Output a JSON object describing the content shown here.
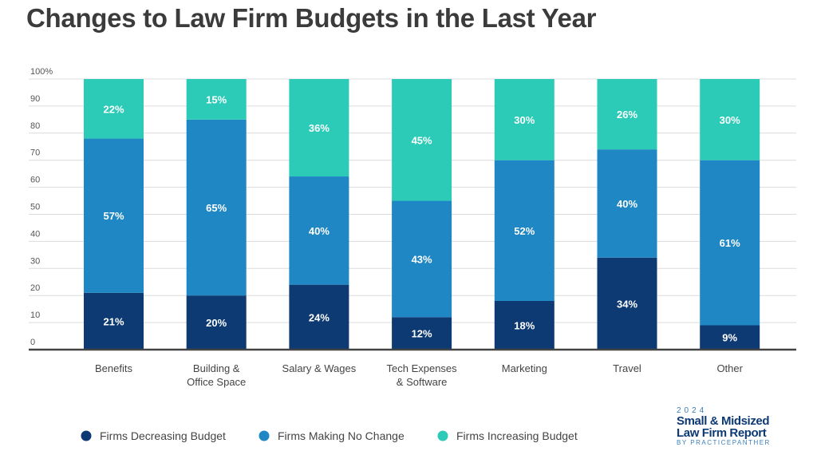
{
  "chart_data": {
    "type": "bar",
    "stacked": true,
    "title": "Changes to Law Firm Budgets in the Last Year",
    "categories": [
      [
        "Benefits"
      ],
      [
        "Building &",
        "Office Space"
      ],
      [
        "Salary & Wages"
      ],
      [
        "Tech Expenses",
        "& Software"
      ],
      [
        "Marketing"
      ],
      [
        "Travel"
      ],
      [
        "Other"
      ]
    ],
    "series": [
      {
        "name": "Firms Decreasing Budget",
        "color": "#0d3a73",
        "values": [
          21,
          20,
          24,
          12,
          18,
          34,
          9
        ]
      },
      {
        "name": "Firms Making No Change",
        "color": "#1f87c4",
        "values": [
          57,
          65,
          40,
          43,
          52,
          40,
          61
        ]
      },
      {
        "name": "Firms Increasing Budget",
        "color": "#2ccbb8",
        "values": [
          22,
          15,
          36,
          45,
          30,
          26,
          30
        ]
      }
    ],
    "yticks": [
      "0",
      "10",
      "20",
      "30",
      "40",
      "50",
      "60",
      "70",
      "80",
      "90",
      "100%"
    ],
    "ylim": [
      0,
      100
    ],
    "grid": true,
    "legend": "bottom-left"
  },
  "logo": {
    "year": "2024",
    "line1": "Small & Midsized",
    "line2": "Law Firm Report",
    "by": "BY PRACTICEPANTHER"
  }
}
